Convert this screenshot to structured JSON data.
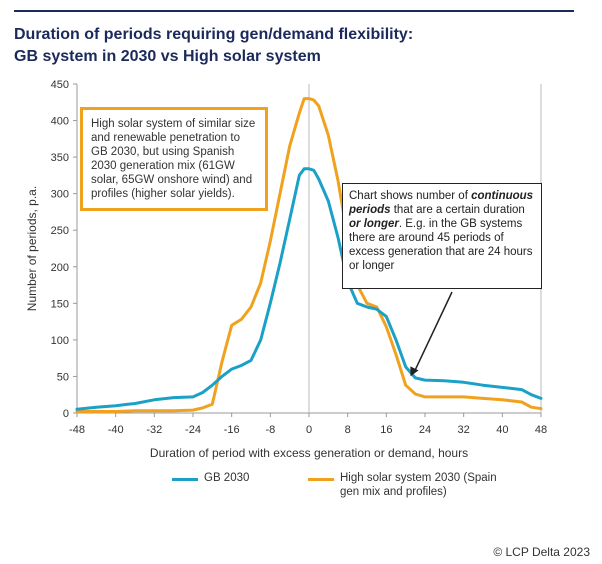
{
  "title_line1": "Duration of periods requiring gen/demand flexibility:",
  "title_line2": "GB system in 2030 vs High solar system",
  "annotation_solar": "High solar system of similar size and renewable penetration to GB 2030, but using Spanish 2030 generation mix (61GW solar, 65GW onshore wind) and profiles (higher solar yields).",
  "annotation_chart": {
    "part1": "Chart shows number of ",
    "bold": "continuous periods",
    "part2": " that are a certain duration ",
    "bold2": "or longer",
    "part3": ".  E.g. in the GB systems there are around 45 periods of excess generation that are 24 hours or longer"
  },
  "credit": "© LCP Delta 2023",
  "chart_data": {
    "type": "line",
    "xlabel": "Duration of period with excess generation or demand, hours",
    "ylabel": "Number of periods, p.a.",
    "xlim": [
      -48,
      48
    ],
    "ylim": [
      0,
      450
    ],
    "xticks": [
      -48,
      -40,
      -32,
      -24,
      -16,
      -8,
      0,
      8,
      16,
      24,
      32,
      40,
      48
    ],
    "yticks": [
      0,
      50,
      100,
      150,
      200,
      250,
      300,
      350,
      400,
      450
    ],
    "grid": false,
    "legend": "bottom",
    "series": [
      {
        "name": "GB 2030",
        "color": "#1ba1c7",
        "x": [
          -48,
          -44,
          -40,
          -36,
          -32,
          -28,
          -24,
          -22,
          -20,
          -18,
          -16,
          -14,
          -12,
          -10,
          -8,
          -6,
          -4,
          -2,
          -1,
          0,
          1,
          2,
          4,
          6,
          8,
          10,
          12,
          14,
          16,
          18,
          20,
          22,
          24,
          28,
          32,
          36,
          40,
          44,
          46,
          48
        ],
        "y": [
          5,
          8,
          10,
          13,
          18,
          21,
          22,
          28,
          38,
          50,
          60,
          65,
          72,
          100,
          150,
          205,
          265,
          325,
          334,
          334,
          332,
          320,
          290,
          240,
          180,
          150,
          145,
          142,
          132,
          100,
          63,
          48,
          45,
          44,
          42,
          38,
          35,
          32,
          25,
          20
        ]
      },
      {
        "name": "High solar system 2030 (Spain gen mix and profiles)",
        "color": "#f0a21e",
        "x": [
          -48,
          -44,
          -40,
          -36,
          -32,
          -28,
          -24,
          -22,
          -20,
          -18,
          -16,
          -14,
          -12,
          -10,
          -8,
          -6,
          -4,
          -2,
          -1,
          0,
          1,
          2,
          4,
          6,
          8,
          10,
          12,
          14,
          16,
          18,
          20,
          22,
          24,
          28,
          32,
          36,
          40,
          44,
          46,
          48
        ],
        "y": [
          2,
          2,
          2,
          3,
          3,
          3,
          4,
          7,
          12,
          70,
          120,
          128,
          145,
          178,
          235,
          300,
          365,
          410,
          430,
          430,
          428,
          420,
          380,
          318,
          240,
          175,
          150,
          145,
          118,
          80,
          38,
          26,
          22,
          22,
          22,
          20,
          18,
          15,
          8,
          6
        ]
      }
    ]
  }
}
